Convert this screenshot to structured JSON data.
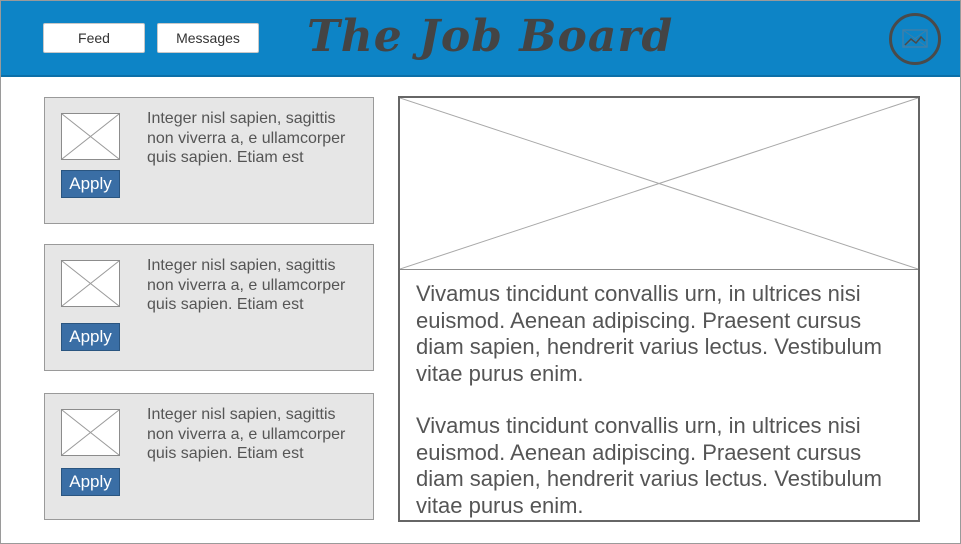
{
  "header": {
    "nav": {
      "feed_label": "Feed",
      "messages_label": "Messages"
    },
    "title": "The Job Board",
    "avatar_icon": "user-avatar-icon"
  },
  "jobs": [
    {
      "thumbnail_icon": "image-placeholder-icon",
      "apply_label": "Apply",
      "description": "Integer nisl sapien, sagittis non viverra a, e ullamcorper quis sapien. Etiam est"
    },
    {
      "thumbnail_icon": "image-placeholder-icon",
      "apply_label": "Apply",
      "description": "Integer nisl sapien, sagittis non viverra a, e ullamcorper quis sapien. Etiam est"
    },
    {
      "thumbnail_icon": "image-placeholder-icon",
      "apply_label": "Apply",
      "description": "Integer nisl sapien, sagittis non viverra a, e ullamcorper quis sapien. Etiam est"
    }
  ],
  "detail": {
    "image_icon": "image-placeholder-icon",
    "paragraphs": [
      "Vivamus tincidunt convallis urn, in ultrices nisi euismod. Aenean adipiscing. Praesent cursus diam sapien, hendrerit varius lectus. Vestibulum vitae purus enim.",
      "Vivamus tincidunt convallis urn, in ultrices nisi euismod. Aenean adipiscing. Praesent cursus diam sapien, hendrerit varius lectus. Vestibulum vitae purus enim."
    ]
  },
  "colors": {
    "header_bg": "#0d84c6",
    "card_bg": "#e6e6e6",
    "apply_button": "#3a6ea5",
    "body_text": "#555555",
    "title_text": "#444444"
  }
}
